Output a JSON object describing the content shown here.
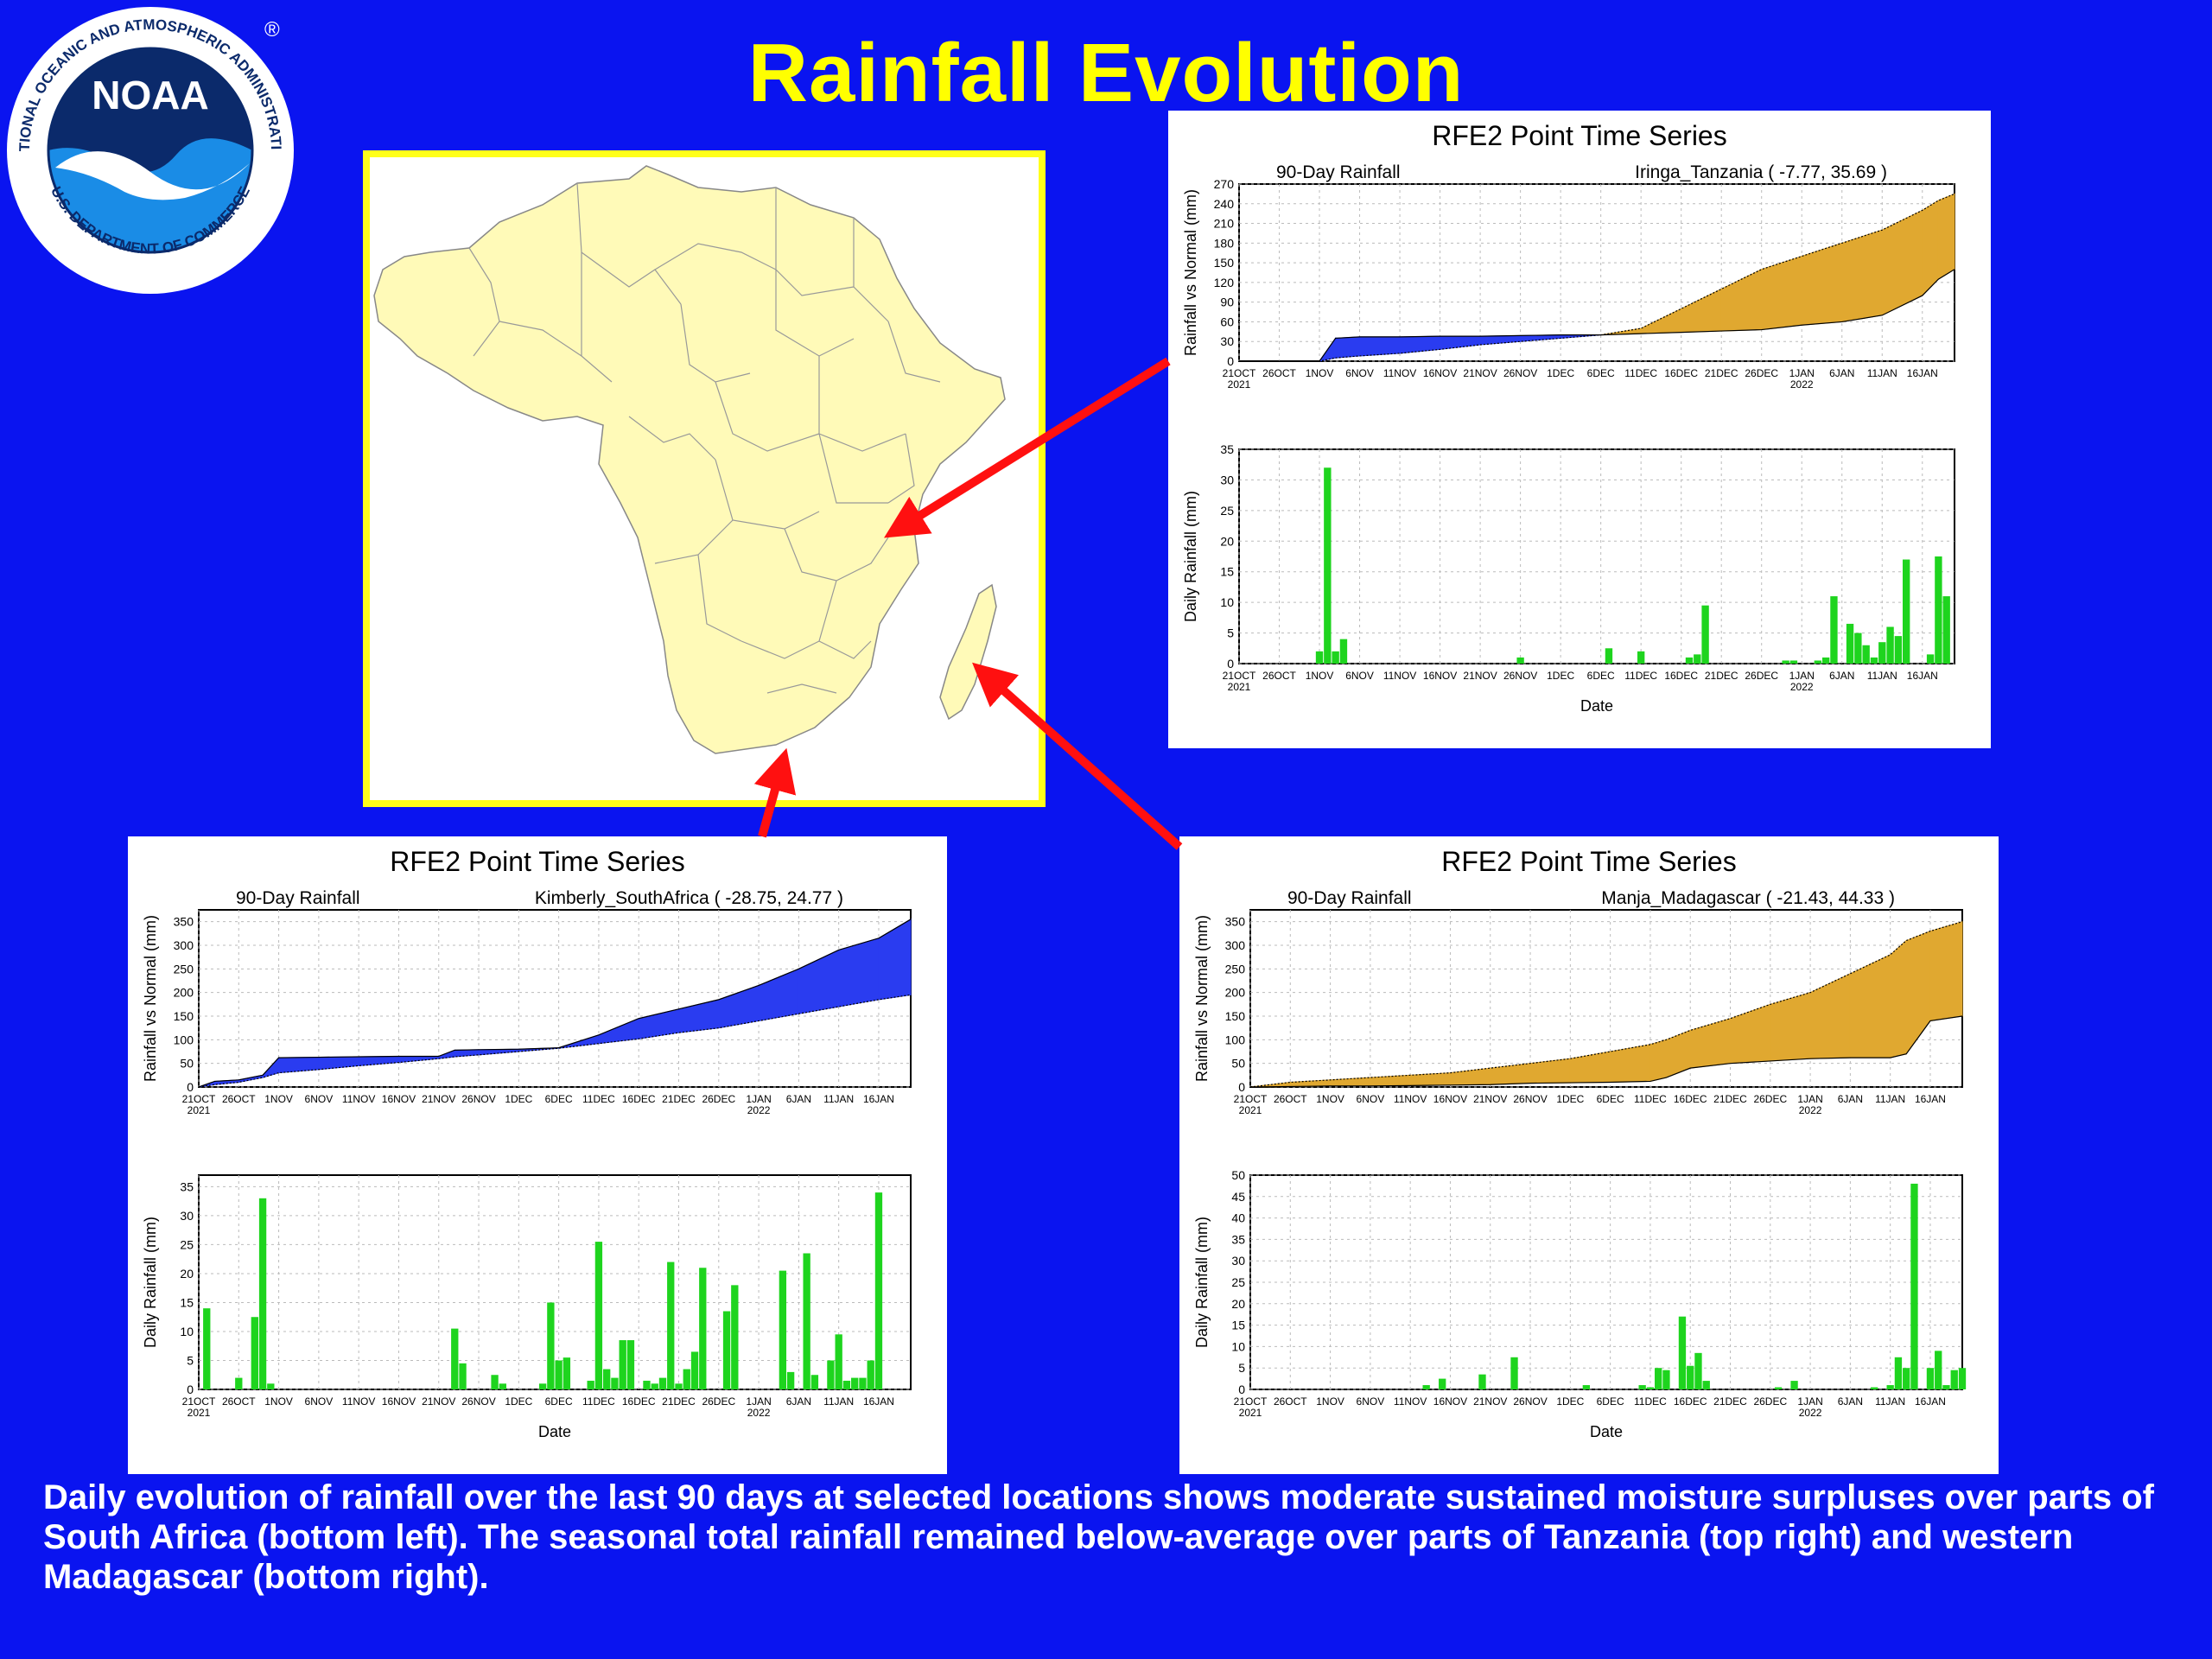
{
  "slide": {
    "title": "Rainfall Evolution",
    "caption": "Daily evolution of rainfall over the last 90 days at selected locations shows moderate sustained moisture surpluses over parts of South Africa (bottom left). The seasonal total rainfall remained below-average over parts of Tanzania (top right) and western Madagascar (bottom right).",
    "logo": {
      "text": "NOAA",
      "ring_text": "NATIONAL OCEANIC AND ATMOSPHERIC ADMINISTRATION",
      "ring_text_bottom": "U.S. DEPARTMENT OF COMMERCE",
      "registered": "®"
    }
  },
  "colors": {
    "background": "#0a14f0",
    "title": "#ffff00",
    "map_land": "#fffab8",
    "map_border": "#ffff1a",
    "surplus": "#2a3cf0",
    "deficit": "#e0a830",
    "bars": "#1ed41e",
    "arrow": "#ff1010"
  },
  "chart_data": [
    {
      "id": "tanzania",
      "type": "area",
      "title": "RFE2 Point Time Series",
      "subtitle_left": "90-Day Rainfall",
      "subtitle_right": "Iringa_Tanzania ( -7.77, 35.69 )",
      "xlabel": "Date",
      "x_ticks": [
        "21OCT",
        "26OCT",
        "1NOV",
        "6NOV",
        "11NOV",
        "16NOV",
        "21NOV",
        "26NOV",
        "1DEC",
        "6DEC",
        "11DEC",
        "16DEC",
        "21DEC",
        "26DEC",
        "1JAN",
        "6JAN",
        "11JAN",
        "16JAN"
      ],
      "x_tick_years": {
        "21OCT": "2021",
        "1JAN": "2022"
      },
      "upper": {
        "ylabel": "Rainfall vs Normal (mm)",
        "ylim": [
          0,
          270
        ],
        "yticks": [
          0,
          30,
          60,
          90,
          120,
          150,
          180,
          210,
          240,
          270
        ],
        "days": [
          0,
          10,
          12,
          15,
          20,
          25,
          30,
          35,
          40,
          45,
          50,
          55,
          60,
          65,
          70,
          75,
          80,
          85,
          87,
          89
        ],
        "actual": [
          0,
          0,
          35,
          37,
          37,
          38,
          38,
          39,
          40,
          40,
          42,
          44,
          46,
          48,
          55,
          60,
          70,
          100,
          125,
          140
        ],
        "normal": [
          0,
          0,
          5,
          8,
          12,
          18,
          25,
          30,
          35,
          40,
          50,
          80,
          110,
          140,
          160,
          180,
          200,
          230,
          245,
          255
        ]
      },
      "lower": {
        "ylabel": "Daily Rainfall (mm)",
        "ylim": [
          0,
          35
        ],
        "yticks": [
          0,
          5,
          10,
          15,
          20,
          25,
          30,
          35
        ],
        "bars": [
          [
            10,
            2
          ],
          [
            11,
            32
          ],
          [
            12,
            2
          ],
          [
            13,
            4
          ],
          [
            35,
            1
          ],
          [
            46,
            2.5
          ],
          [
            50,
            2
          ],
          [
            56,
            1
          ],
          [
            57,
            1.5
          ],
          [
            58,
            9.5
          ],
          [
            68,
            0.5
          ],
          [
            69,
            0.5
          ],
          [
            72,
            0.5
          ],
          [
            73,
            1
          ],
          [
            74,
            11
          ],
          [
            76,
            6.5
          ],
          [
            77,
            5
          ],
          [
            78,
            3
          ],
          [
            79,
            1
          ],
          [
            80,
            3.5
          ],
          [
            81,
            6
          ],
          [
            82,
            4.5
          ],
          [
            83,
            17
          ],
          [
            86,
            1.5
          ],
          [
            87,
            17.5
          ],
          [
            88,
            11
          ]
        ]
      }
    },
    {
      "id": "south_africa",
      "type": "area",
      "title": "RFE2 Point Time Series",
      "subtitle_left": "90-Day Rainfall",
      "subtitle_right": "Kimberly_SouthAfrica ( -28.75, 24.77 )",
      "xlabel": "Date",
      "x_ticks": [
        "21OCT",
        "26OCT",
        "1NOV",
        "6NOV",
        "11NOV",
        "16NOV",
        "21NOV",
        "26NOV",
        "1DEC",
        "6DEC",
        "11DEC",
        "16DEC",
        "21DEC",
        "26DEC",
        "1JAN",
        "6JAN",
        "11JAN",
        "16JAN"
      ],
      "x_tick_years": {
        "21OCT": "2021",
        "1JAN": "2022"
      },
      "upper": {
        "ylabel": "Rainfall vs Normal (mm)",
        "ylim": [
          0,
          375
        ],
        "yticks": [
          0,
          50,
          100,
          150,
          200,
          250,
          300,
          350
        ],
        "days": [
          0,
          2,
          5,
          8,
          10,
          15,
          20,
          25,
          30,
          32,
          35,
          40,
          45,
          50,
          55,
          60,
          65,
          70,
          75,
          80,
          85,
          89
        ],
        "actual": [
          0,
          12,
          15,
          25,
          62,
          63,
          64,
          65,
          65,
          78,
          79,
          80,
          83,
          110,
          145,
          165,
          185,
          215,
          250,
          290,
          315,
          355
        ],
        "normal": [
          0,
          5,
          10,
          20,
          30,
          37,
          45,
          52,
          60,
          64,
          68,
          75,
          82,
          92,
          102,
          115,
          125,
          140,
          155,
          170,
          185,
          195
        ]
      },
      "lower": {
        "ylabel": "Daily Rainfall (mm)",
        "ylim": [
          0,
          37
        ],
        "yticks": [
          0,
          5,
          10,
          15,
          20,
          25,
          30,
          35
        ],
        "bars": [
          [
            1,
            14
          ],
          [
            5,
            2
          ],
          [
            7,
            12.5
          ],
          [
            8,
            33
          ],
          [
            9,
            1
          ],
          [
            32,
            10.5
          ],
          [
            33,
            4.5
          ],
          [
            37,
            2.5
          ],
          [
            38,
            1
          ],
          [
            43,
            1
          ],
          [
            44,
            15
          ],
          [
            45,
            5
          ],
          [
            46,
            5.5
          ],
          [
            49,
            1.5
          ],
          [
            50,
            25.5
          ],
          [
            51,
            3.5
          ],
          [
            52,
            2
          ],
          [
            53,
            8.5
          ],
          [
            54,
            8.5
          ],
          [
            56,
            1.5
          ],
          [
            57,
            1
          ],
          [
            58,
            2
          ],
          [
            59,
            22
          ],
          [
            60,
            1
          ],
          [
            61,
            3.5
          ],
          [
            62,
            6.5
          ],
          [
            63,
            21
          ],
          [
            66,
            13.5
          ],
          [
            67,
            18
          ],
          [
            73,
            20.5
          ],
          [
            74,
            3
          ],
          [
            76,
            23.5
          ],
          [
            77,
            2.5
          ],
          [
            79,
            5
          ],
          [
            80,
            9.5
          ],
          [
            81,
            1.5
          ],
          [
            82,
            2
          ],
          [
            83,
            2
          ],
          [
            84,
            5
          ],
          [
            85,
            34
          ]
        ]
      }
    },
    {
      "id": "madagascar",
      "type": "area",
      "title": "RFE2 Point Time Series",
      "subtitle_left": "90-Day Rainfall",
      "subtitle_right": "Manja_Madagascar ( -21.43, 44.33 )",
      "xlabel": "Date",
      "x_ticks": [
        "21OCT",
        "26OCT",
        "1NOV",
        "6NOV",
        "11NOV",
        "16NOV",
        "21NOV",
        "26NOV",
        "1DEC",
        "6DEC",
        "11DEC",
        "16DEC",
        "21DEC",
        "26DEC",
        "1JAN",
        "6JAN",
        "11JAN",
        "16JAN"
      ],
      "x_tick_years": {
        "21OCT": "2021",
        "1JAN": "2022"
      },
      "upper": {
        "ylabel": "Rainfall vs Normal (mm)",
        "ylim": [
          0,
          375
        ],
        "yticks": [
          0,
          50,
          100,
          150,
          200,
          250,
          300,
          350
        ],
        "days": [
          0,
          5,
          10,
          15,
          20,
          25,
          30,
          35,
          40,
          45,
          50,
          52,
          55,
          60,
          65,
          70,
          75,
          80,
          82,
          85,
          89
        ],
        "actual": [
          0,
          1,
          2,
          2,
          3,
          4,
          5,
          8,
          9,
          10,
          12,
          20,
          40,
          50,
          55,
          60,
          62,
          62,
          70,
          140,
          150
        ],
        "normal": [
          0,
          10,
          15,
          20,
          25,
          30,
          40,
          50,
          60,
          75,
          90,
          100,
          120,
          145,
          175,
          200,
          240,
          280,
          310,
          330,
          350
        ]
      },
      "lower": {
        "ylabel": "Daily Rainfall (mm)",
        "ylim": [
          0,
          50
        ],
        "yticks": [
          0,
          5,
          10,
          15,
          20,
          25,
          30,
          35,
          40,
          45,
          50
        ],
        "bars": [
          [
            22,
            1
          ],
          [
            24,
            2.5
          ],
          [
            29,
            3.5
          ],
          [
            33,
            7.5
          ],
          [
            42,
            1
          ],
          [
            49,
            1
          ],
          [
            50,
            0.5
          ],
          [
            51,
            5
          ],
          [
            52,
            4.5
          ],
          [
            54,
            17
          ],
          [
            55,
            5.5
          ],
          [
            56,
            8.5
          ],
          [
            57,
            2
          ],
          [
            66,
            0.5
          ],
          [
            68,
            2
          ],
          [
            78,
            0.5
          ],
          [
            80,
            1
          ],
          [
            81,
            7.5
          ],
          [
            82,
            5
          ],
          [
            83,
            48
          ],
          [
            85,
            5
          ],
          [
            86,
            9
          ],
          [
            87,
            1
          ],
          [
            88,
            4.5
          ],
          [
            89,
            5
          ]
        ]
      }
    }
  ]
}
